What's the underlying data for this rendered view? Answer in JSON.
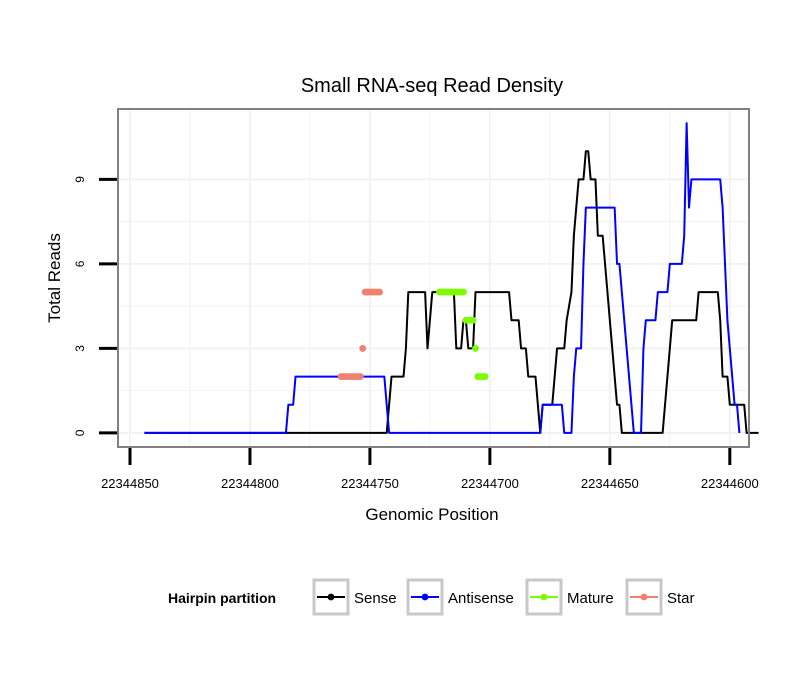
{
  "colors": {
    "sense": "#000000",
    "antisense": "#0000ff",
    "mature": "#7cfc00",
    "star": "#f08070",
    "panel_border": "#808080",
    "grid": "#f2f2f2",
    "legend_key_border": "#c8c8c8"
  },
  "chart_data": {
    "type": "line",
    "title": "Small RNA-seq Read Density",
    "xlabel": "Genomic Position",
    "ylabel": "Total Reads",
    "x_reversed": true,
    "xlim": [
      22344855,
      22344592
    ],
    "ylim": [
      -0.5,
      11.5
    ],
    "x_ticks": [
      {
        "value": 22344850,
        "label": "22344850"
      },
      {
        "value": 22344800,
        "label": "22344800"
      },
      {
        "value": 22344750,
        "label": "22344750"
      },
      {
        "value": 22344700,
        "label": "22344700"
      },
      {
        "value": 22344650,
        "label": "22344650"
      },
      {
        "value": 22344600,
        "label": "22344600"
      }
    ],
    "y_ticks": [
      {
        "value": 0,
        "label": "0"
      },
      {
        "value": 3,
        "label": "3"
      },
      {
        "value": 6,
        "label": "6"
      },
      {
        "value": 9,
        "label": "9"
      }
    ],
    "series": [
      {
        "name": "Sense",
        "key": "sense",
        "style": "line",
        "points": [
          [
            22344844,
            0
          ],
          [
            22344828,
            0
          ],
          [
            22344812,
            0
          ],
          [
            22344796,
            0
          ],
          [
            22344780,
            0
          ],
          [
            22344764,
            0
          ],
          [
            22344750,
            0
          ],
          [
            22344743,
            0
          ],
          [
            22344742,
            1
          ],
          [
            22344741,
            2
          ],
          [
            22344736,
            2
          ],
          [
            22344735,
            3
          ],
          [
            22344734,
            5
          ],
          [
            22344727,
            5
          ],
          [
            22344726,
            3
          ],
          [
            22344725,
            4
          ],
          [
            22344724,
            5
          ],
          [
            22344715,
            5
          ],
          [
            22344714,
            3
          ],
          [
            22344712,
            3
          ],
          [
            22344711,
            4
          ],
          [
            22344710,
            4
          ],
          [
            22344709,
            3
          ],
          [
            22344707,
            3
          ],
          [
            22344706,
            5
          ],
          [
            22344692,
            5
          ],
          [
            22344691,
            4
          ],
          [
            22344688,
            4
          ],
          [
            22344687,
            3
          ],
          [
            22344685,
            3
          ],
          [
            22344684,
            2
          ],
          [
            22344681,
            2
          ],
          [
            22344680,
            1
          ],
          [
            22344679,
            0
          ],
          [
            22344678,
            1
          ],
          [
            22344674,
            1
          ],
          [
            22344673,
            2
          ],
          [
            22344672,
            3
          ],
          [
            22344669,
            3
          ],
          [
            22344668,
            4
          ],
          [
            22344666,
            5
          ],
          [
            22344665,
            7
          ],
          [
            22344664,
            8
          ],
          [
            22344663,
            9
          ],
          [
            22344661,
            9
          ],
          [
            22344660,
            10
          ],
          [
            22344659,
            10
          ],
          [
            22344658,
            9
          ],
          [
            22344656,
            9
          ],
          [
            22344655,
            7
          ],
          [
            22344653,
            7
          ],
          [
            22344652,
            6
          ],
          [
            22344651,
            5
          ],
          [
            22344650,
            4
          ],
          [
            22344649,
            3
          ],
          [
            22344648,
            2
          ],
          [
            22344647,
            1
          ],
          [
            22344646,
            1
          ],
          [
            22344645,
            0
          ],
          [
            22344642,
            0
          ],
          [
            22344628,
            0
          ],
          [
            22344627,
            1
          ],
          [
            22344626,
            2
          ],
          [
            22344625,
            3
          ],
          [
            22344624,
            4
          ],
          [
            22344622,
            4
          ],
          [
            22344614,
            4
          ],
          [
            22344613,
            5
          ],
          [
            22344605,
            5
          ],
          [
            22344604,
            4
          ],
          [
            22344603,
            2
          ],
          [
            22344601,
            2
          ],
          [
            22344600,
            1
          ],
          [
            22344594,
            1
          ],
          [
            22344593,
            0
          ],
          [
            22344588,
            0
          ]
        ]
      },
      {
        "name": "Antisense",
        "key": "antisense",
        "style": "line",
        "points": [
          [
            22344844,
            0
          ],
          [
            22344828,
            0
          ],
          [
            22344812,
            0
          ],
          [
            22344796,
            0
          ],
          [
            22344785,
            0
          ],
          [
            22344784,
            1
          ],
          [
            22344782,
            1
          ],
          [
            22344781,
            2
          ],
          [
            22344770,
            2
          ],
          [
            22344764,
            2
          ],
          [
            22344750,
            2
          ],
          [
            22344744,
            2
          ],
          [
            22344743,
            1
          ],
          [
            22344742,
            0
          ],
          [
            22344730,
            0
          ],
          [
            22344710,
            0
          ],
          [
            22344690,
            0
          ],
          [
            22344679,
            0
          ],
          [
            22344678,
            1
          ],
          [
            22344670,
            1
          ],
          [
            22344669,
            0
          ],
          [
            22344666,
            0
          ],
          [
            22344665,
            2
          ],
          [
            22344664,
            3
          ],
          [
            22344662,
            3
          ],
          [
            22344661,
            6
          ],
          [
            22344660,
            8
          ],
          [
            22344650,
            8
          ],
          [
            22344648,
            8
          ],
          [
            22344647,
            6
          ],
          [
            22344646,
            6
          ],
          [
            22344645,
            5
          ],
          [
            22344644,
            4
          ],
          [
            22344643,
            3
          ],
          [
            22344642,
            2
          ],
          [
            22344641,
            1
          ],
          [
            22344640,
            0
          ],
          [
            22344637,
            0
          ],
          [
            22344636,
            3
          ],
          [
            22344635,
            4
          ],
          [
            22344631,
            4
          ],
          [
            22344630,
            5
          ],
          [
            22344626,
            5
          ],
          [
            22344625,
            6
          ],
          [
            22344620,
            6
          ],
          [
            22344619,
            7
          ],
          [
            22344618,
            11
          ],
          [
            22344617,
            8
          ],
          [
            22344616,
            9
          ],
          [
            22344604,
            9
          ],
          [
            22344603,
            8
          ],
          [
            22344602,
            6
          ],
          [
            22344601,
            4
          ],
          [
            22344600,
            3
          ],
          [
            22344599,
            2
          ],
          [
            22344598,
            1
          ],
          [
            22344597,
            1
          ],
          [
            22344596,
            0
          ]
        ]
      },
      {
        "name": "Mature",
        "key": "mature",
        "style": "dots",
        "points": [
          [
            22344721,
            5
          ],
          [
            22344720,
            5
          ],
          [
            22344719,
            5
          ],
          [
            22344718,
            5
          ],
          [
            22344717,
            5
          ],
          [
            22344716,
            5
          ],
          [
            22344715,
            5
          ],
          [
            22344714,
            5
          ],
          [
            22344713,
            5
          ],
          [
            22344712,
            5
          ],
          [
            22344711,
            5
          ],
          [
            22344710,
            4
          ],
          [
            22344709,
            4
          ],
          [
            22344708,
            4
          ],
          [
            22344707,
            4
          ],
          [
            22344706,
            3
          ],
          [
            22344705,
            2
          ],
          [
            22344704,
            2
          ],
          [
            22344703,
            2
          ],
          [
            22344702,
            2
          ]
        ]
      },
      {
        "name": "Star",
        "key": "star",
        "style": "dots",
        "points": [
          [
            22344762,
            2
          ],
          [
            22344761,
            2
          ],
          [
            22344760,
            2
          ],
          [
            22344759,
            2
          ],
          [
            22344758,
            2
          ],
          [
            22344757,
            2
          ],
          [
            22344756,
            2
          ],
          [
            22344755,
            2
          ],
          [
            22344754,
            2
          ],
          [
            22344753,
            3
          ],
          [
            22344752,
            5
          ],
          [
            22344751,
            5
          ],
          [
            22344750,
            5
          ],
          [
            22344749,
            5
          ],
          [
            22344748,
            5
          ],
          [
            22344747,
            5
          ],
          [
            22344746,
            5
          ]
        ]
      }
    ],
    "legend": {
      "title": "Hairpin partition",
      "position": "bottom",
      "entries": [
        {
          "label": "Sense",
          "key": "sense"
        },
        {
          "label": "Antisense",
          "key": "antisense"
        },
        {
          "label": "Mature",
          "key": "mature"
        },
        {
          "label": "Star",
          "key": "star"
        }
      ]
    }
  }
}
